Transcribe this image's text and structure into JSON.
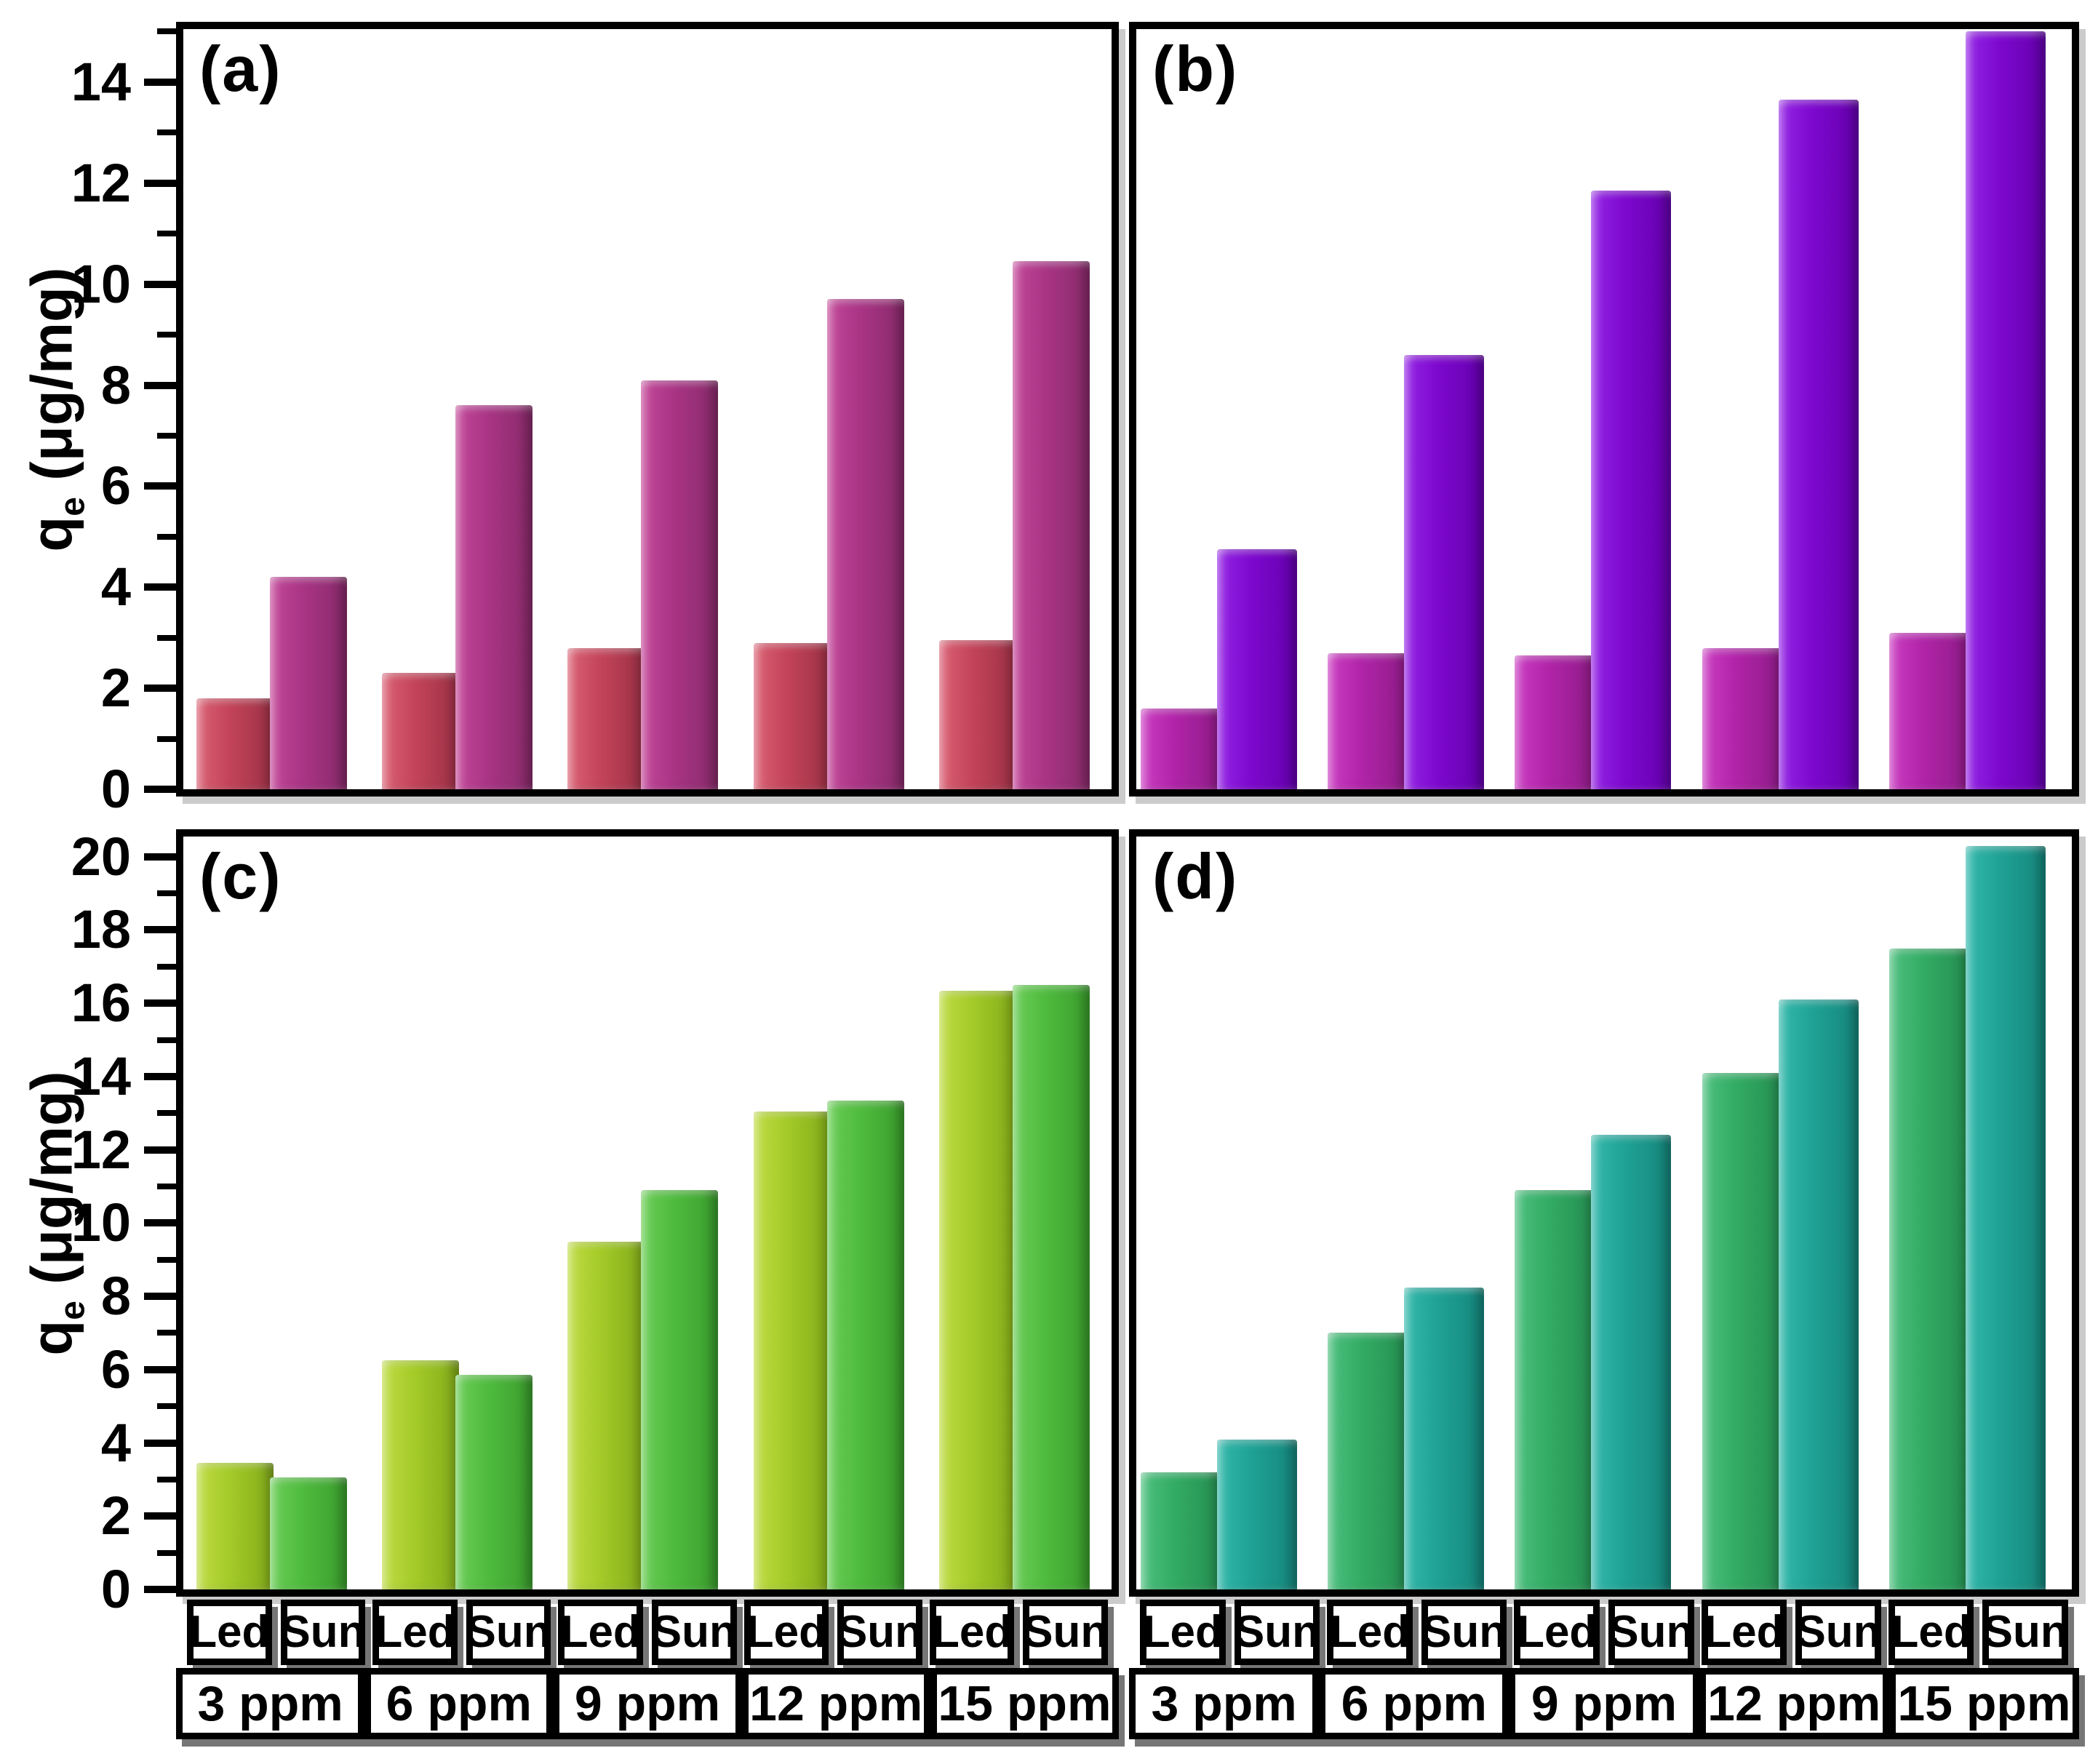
{
  "ylabel": {
    "base": "q",
    "sub": "e",
    "rest": " (μg/mg)"
  },
  "categories": [
    "3 ppm",
    "6 ppm",
    "9 ppm",
    "12 ppm",
    "15 ppm"
  ],
  "series_labels": [
    "Led",
    "Sun"
  ],
  "frame_color": "#000000",
  "background_color": "#ffffff",
  "chart_data": [
    {
      "type": "bar",
      "panel_label": "(a)",
      "row": 0,
      "col": 0,
      "categories": [
        "3 ppm",
        "6 ppm",
        "9 ppm",
        "12 ppm",
        "15 ppm"
      ],
      "series": [
        {
          "name": "Led",
          "values": [
            1.8,
            2.3,
            2.8,
            2.9,
            2.95
          ],
          "color": "#C4445A",
          "color_light": "#DB6174",
          "color_dark": "#9B3045"
        },
        {
          "name": "Sun",
          "values": [
            4.2,
            7.6,
            8.1,
            9.7,
            10.45
          ],
          "color": "#A93485",
          "color_light": "#C4489A",
          "color_dark": "#882A6A"
        }
      ],
      "ylabel": "qe (μg/mg)",
      "ylim": [
        0,
        15.05
      ],
      "ytick_labels": [
        0,
        2,
        4,
        6,
        8,
        10,
        12,
        14
      ],
      "minor_tick_step": 1,
      "grid": false,
      "legend_position": "none",
      "y_axis_labels_visible": true,
      "x_axis_labels_visible": false
    },
    {
      "type": "bar",
      "panel_label": "(b)",
      "row": 0,
      "col": 1,
      "categories": [
        "3 ppm",
        "6 ppm",
        "9 ppm",
        "12 ppm",
        "15 ppm"
      ],
      "series": [
        {
          "name": "Led",
          "values": [
            1.6,
            2.7,
            2.65,
            2.8,
            3.1
          ],
          "color": "#B124A9",
          "color_light": "#CB3DC2",
          "color_dark": "#8E1B87"
        },
        {
          "name": "Sun",
          "values": [
            4.75,
            8.6,
            11.85,
            13.65,
            15.0
          ],
          "color": "#7D08CE",
          "color_light": "#9526E6",
          "color_dark": "#6400AD"
        }
      ],
      "ylabel": "qe (μg/mg)",
      "ylim": [
        0,
        15.05
      ],
      "ytick_labels": [
        0,
        2,
        4,
        6,
        8,
        10,
        12,
        14
      ],
      "minor_tick_step": 1,
      "grid": false,
      "legend_position": "none",
      "y_axis_labels_visible": false,
      "x_axis_labels_visible": false
    },
    {
      "type": "bar",
      "panel_label": "(c)",
      "row": 1,
      "col": 0,
      "categories": [
        "3 ppm",
        "6 ppm",
        "9 ppm",
        "12 ppm",
        "15 ppm"
      ],
      "series": [
        {
          "name": "Led",
          "values": [
            3.45,
            6.25,
            9.5,
            13.05,
            16.35
          ],
          "color": "#A4CB28",
          "color_light": "#C0DC45",
          "color_dark": "#82AB19"
        },
        {
          "name": "Sun",
          "values": [
            3.05,
            5.85,
            10.9,
            13.35,
            16.5
          ],
          "color": "#4FBB3E",
          "color_light": "#6CCE58",
          "color_dark": "#3A9D2C"
        }
      ],
      "ylabel": "qe (μg/mg)",
      "ylim": [
        0,
        20.55
      ],
      "ytick_labels": [
        0,
        2,
        4,
        6,
        8,
        10,
        12,
        14,
        16,
        18,
        20
      ],
      "minor_tick_step": 1,
      "grid": false,
      "legend_position": "none",
      "y_axis_labels_visible": true,
      "x_axis_labels_visible": true
    },
    {
      "type": "bar",
      "panel_label": "(d)",
      "row": 1,
      "col": 1,
      "categories": [
        "3 ppm",
        "6 ppm",
        "9 ppm",
        "12 ppm",
        "15 ppm"
      ],
      "series": [
        {
          "name": "Led",
          "values": [
            3.2,
            7.0,
            10.9,
            14.1,
            17.5
          ],
          "color": "#32AC64",
          "color_light": "#4DC07F",
          "color_dark": "#258E51"
        },
        {
          "name": "Sun",
          "values": [
            4.1,
            8.25,
            12.4,
            16.1,
            20.3
          ],
          "color": "#1FA295",
          "color_light": "#34B9AC",
          "color_dark": "#15857B"
        }
      ],
      "ylabel": "qe (μg/mg)",
      "ylim": [
        0,
        20.55
      ],
      "ytick_labels": [
        0,
        2,
        4,
        6,
        8,
        10,
        12,
        14,
        16,
        18,
        20
      ],
      "minor_tick_step": 1,
      "grid": false,
      "legend_position": "none",
      "y_axis_labels_visible": false,
      "x_axis_labels_visible": true
    }
  ]
}
